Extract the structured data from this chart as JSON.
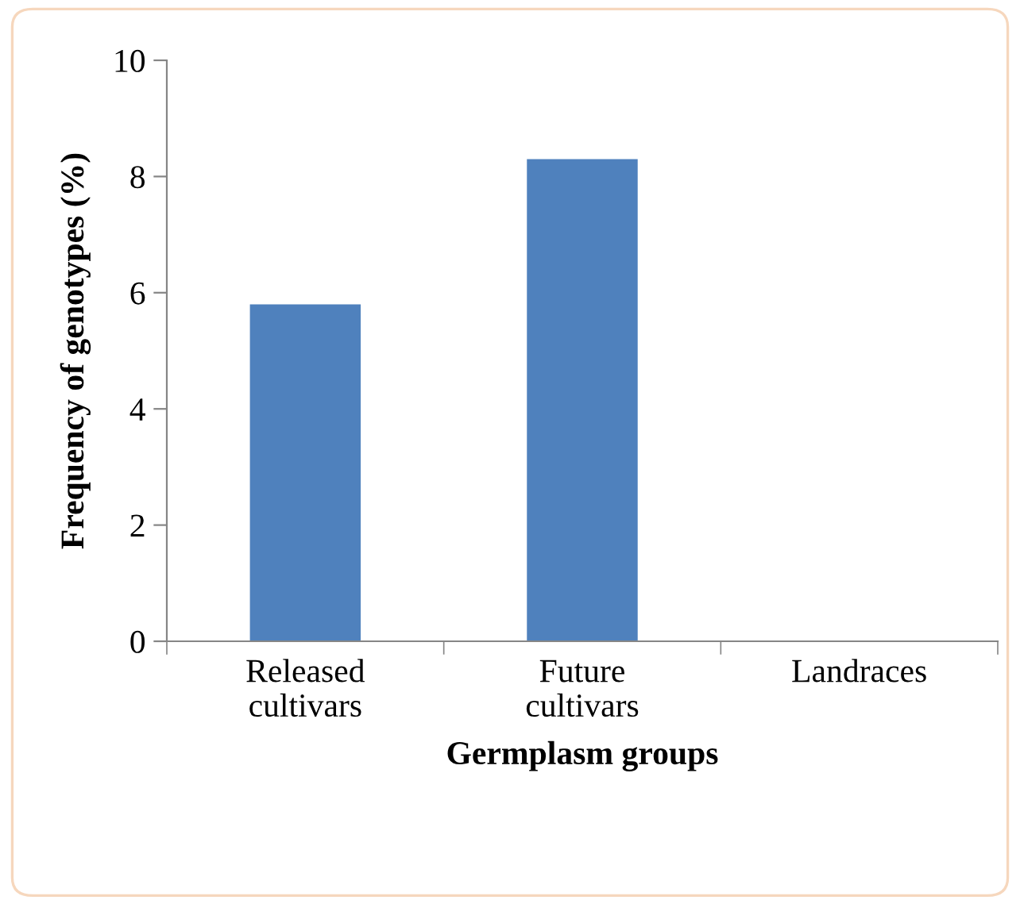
{
  "chart_data": {
    "type": "bar",
    "xlabel": "Germplasm groups",
    "ylabel": "Frequency of genotypes (%)",
    "categories": [
      "Released\ncultivars",
      "Future\ncultivars",
      "Landraces"
    ],
    "values": [
      5.8,
      8.3,
      0
    ],
    "color": "#4f81bd",
    "ylim": [
      0,
      10
    ],
    "yticks": [
      0,
      2,
      4,
      6,
      8,
      10
    ],
    "grid": false
  }
}
